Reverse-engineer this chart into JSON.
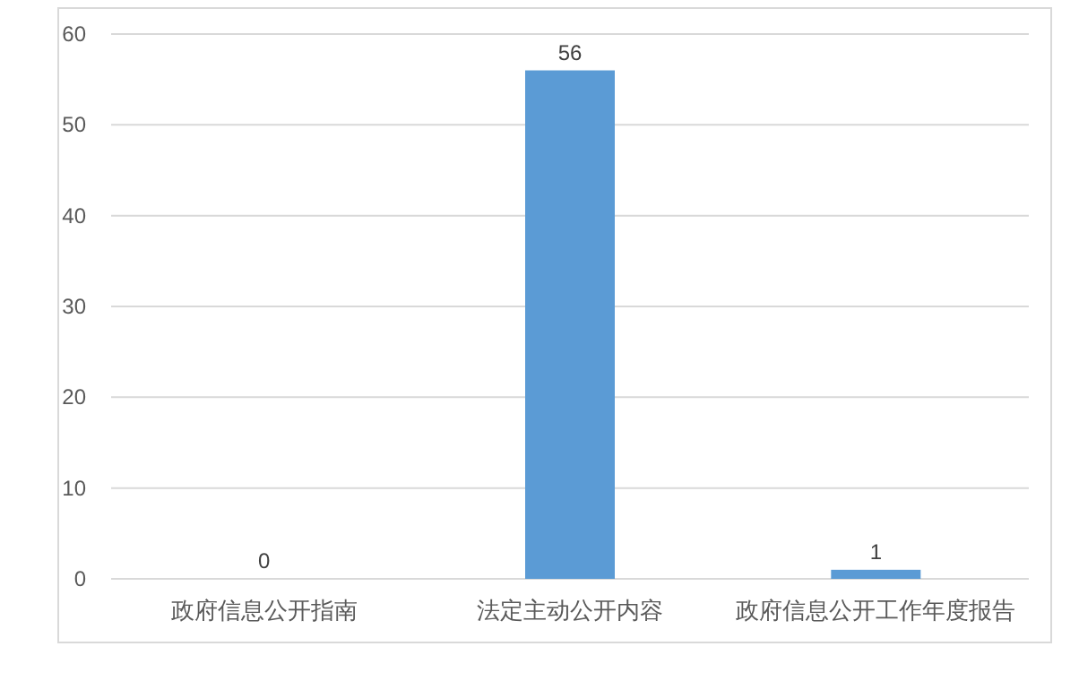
{
  "chart_data": {
    "type": "bar",
    "categories": [
      "政府信息公开指南",
      "法定主动公开内容",
      "政府信息公开工作年度报告"
    ],
    "values": [
      0,
      56,
      1
    ],
    "color": "#5b9bd5",
    "ylim": [
      0,
      60
    ],
    "yticks": [
      0,
      10,
      20,
      30,
      40,
      50,
      60
    ],
    "grid": "y",
    "data_labels": true
  }
}
